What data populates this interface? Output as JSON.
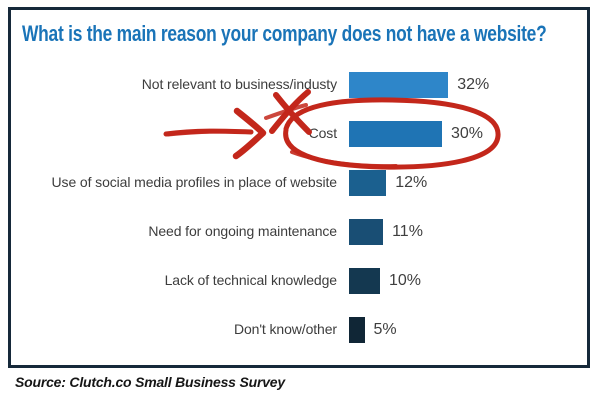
{
  "title": "What is the main reason your company does not have a website?",
  "source": "Source: Clutch.co Small Business Survey",
  "colors": {
    "title_blue": "#1a74b8",
    "frame_border": "#16293a",
    "label_text": "#3d3d3d",
    "annotation_red": "#c3271b"
  },
  "chart_data": {
    "type": "bar",
    "orientation": "horizontal",
    "title": "What is the main reason your company does not have a website?",
    "xlabel": "",
    "ylabel": "",
    "xlim": [
      0,
      35
    ],
    "grid": false,
    "legend": false,
    "categories": [
      "Not relevant to business/industy",
      "Cost",
      "Use of social media profiles in place of website",
      "Need for ongoing maintenance",
      "Lack of technical knowledge",
      "Don't know/other"
    ],
    "values": [
      32,
      30,
      12,
      11,
      10,
      5
    ],
    "rows": [
      {
        "label": "Not relevant to business/industy",
        "value": 32,
        "value_label": "32%",
        "color": "#2e86c9"
      },
      {
        "label": "Cost",
        "value": 30,
        "value_label": "30%",
        "color": "#1f74b4"
      },
      {
        "label": "Use of social media profiles in place of website",
        "value": 12,
        "value_label": "12%",
        "color": "#1b608f"
      },
      {
        "label": "Need for ongoing maintenance",
        "value": 11,
        "value_label": "11%",
        "color": "#194e74"
      },
      {
        "label": "Lack of technical knowledge",
        "value": 10,
        "value_label": "10%",
        "color": "#143850"
      },
      {
        "label": "Don't know/other",
        "value": 5,
        "value_label": "5%",
        "color": "#102636"
      }
    ],
    "annotation": {
      "shape": "hand-drawn red circle with arrow pointing at it",
      "target": "Cost 30%"
    }
  }
}
